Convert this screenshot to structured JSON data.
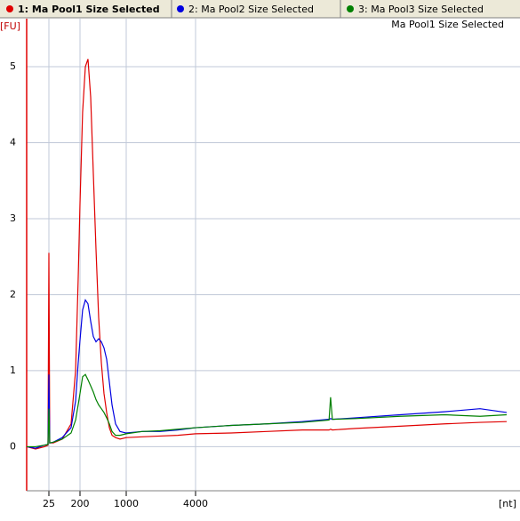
{
  "chart_data": {
    "type": "line",
    "subtitle": "Ma Pool1 Size Selected",
    "y_label": "[FU]",
    "x_label": "[nt]",
    "xlim": [
      6,
      17500
    ],
    "ylim": [
      -0.58,
      5.62
    ],
    "xticks": [
      25,
      200,
      1000,
      4000
    ],
    "yticks": [
      0,
      1,
      2,
      3,
      4,
      5
    ],
    "grid": true,
    "x": [
      6,
      10.6,
      18.8,
      23.6,
      25,
      26.5,
      33.7,
      61,
      110,
      149,
      177,
      200,
      219,
      241,
      264,
      290,
      318,
      349,
      383,
      421,
      461,
      506,
      556,
      610,
      690,
      805,
      1000,
      1377,
      1965,
      2803,
      4000,
      4735,
      5606,
      6637,
      7535,
      7590,
      7655,
      8550,
      10550,
      13030,
      15420,
      17500
    ],
    "series": [
      {
        "name": "1: Ma Pool1 Size Selected",
        "color": "#e00000",
        "values": [
          0.0,
          -0.03,
          0.0,
          0.02,
          2.55,
          0.05,
          0.05,
          0.1,
          0.3,
          1.0,
          2.2,
          3.2,
          4.4,
          5.0,
          5.1,
          4.6,
          3.6,
          2.6,
          1.7,
          1.1,
          0.7,
          0.45,
          0.25,
          0.15,
          0.12,
          0.1,
          0.12,
          0.13,
          0.14,
          0.15,
          0.17,
          0.18,
          0.2,
          0.22,
          0.22,
          0.23,
          0.22,
          0.24,
          0.27,
          0.3,
          0.32,
          0.33
        ]
      },
      {
        "name": "2: Ma Pool2 Size Selected",
        "color": "#0000e0",
        "values": [
          0.0,
          -0.02,
          0.02,
          0.03,
          0.95,
          0.05,
          0.06,
          0.12,
          0.25,
          0.6,
          1.1,
          1.4,
          1.8,
          1.93,
          1.88,
          1.65,
          1.45,
          1.38,
          1.42,
          1.38,
          1.3,
          1.15,
          0.85,
          0.55,
          0.3,
          0.2,
          0.18,
          0.2,
          0.2,
          0.22,
          0.25,
          0.28,
          0.3,
          0.33,
          0.36,
          0.37,
          0.36,
          0.38,
          0.42,
          0.46,
          0.5,
          0.45
        ]
      },
      {
        "name": "3: Ma Pool3 Size Selected",
        "color": "#008000",
        "values": [
          0.0,
          0.0,
          0.02,
          0.03,
          0.5,
          0.05,
          0.06,
          0.1,
          0.18,
          0.35,
          0.55,
          0.7,
          0.92,
          0.95,
          0.88,
          0.8,
          0.72,
          0.62,
          0.55,
          0.5,
          0.45,
          0.38,
          0.3,
          0.2,
          0.15,
          0.15,
          0.17,
          0.2,
          0.21,
          0.23,
          0.25,
          0.28,
          0.3,
          0.32,
          0.35,
          0.65,
          0.36,
          0.37,
          0.4,
          0.42,
          0.4,
          0.42
        ]
      }
    ]
  }
}
